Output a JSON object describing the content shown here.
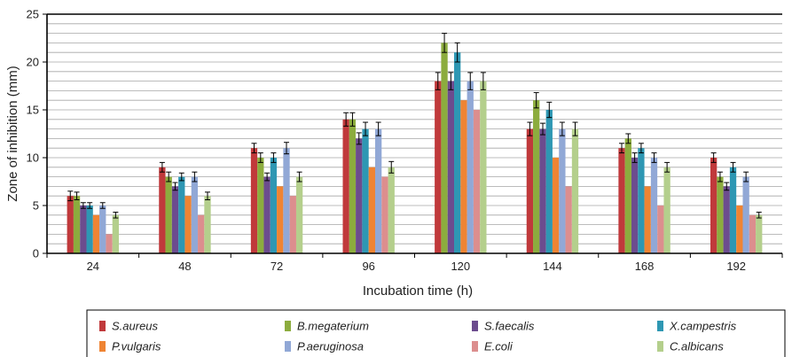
{
  "chart_data": {
    "type": "bar",
    "title": "",
    "xlabel": "Incubation time (h)",
    "ylabel": "Zone of inhibition (mm)",
    "ylim": [
      0,
      25
    ],
    "yticks": [
      "0",
      "5",
      "10",
      "15",
      "20",
      "25"
    ],
    "grid": true,
    "error_bars": true,
    "legend_position": "bottom",
    "categories": [
      "24",
      "48",
      "72",
      "96",
      "120",
      "144",
      "168",
      "192"
    ],
    "series": [
      {
        "name": "S.aureus",
        "color": "#c0393b",
        "values": [
          6,
          9,
          11,
          14,
          18,
          13,
          11,
          10
        ],
        "errors": [
          0.5,
          0.5,
          0.5,
          0.7,
          0.9,
          0.7,
          0.5,
          0.5
        ]
      },
      {
        "name": "B.megaterium",
        "color": "#8cac3e",
        "values": [
          6,
          8,
          10,
          14,
          22,
          16,
          12,
          8
        ],
        "errors": [
          0.4,
          0.5,
          0.5,
          0.7,
          1.0,
          0.8,
          0.5,
          0.5
        ]
      },
      {
        "name": "S.faecalis",
        "color": "#6c4c8e",
        "values": [
          5,
          7,
          8,
          12,
          18,
          13,
          10,
          7
        ],
        "errors": [
          0.3,
          0.4,
          0.4,
          0.6,
          0.9,
          0.6,
          0.5,
          0.4
        ]
      },
      {
        "name": "X.campestris",
        "color": "#2e97b3",
        "values": [
          5,
          8,
          10,
          13,
          21,
          15,
          11,
          9
        ],
        "errors": [
          0.3,
          0.4,
          0.5,
          0.7,
          1.0,
          0.8,
          0.5,
          0.5
        ]
      },
      {
        "name": "P.vulgaris",
        "color": "#ef8433",
        "values": [
          4,
          6,
          7,
          9,
          16,
          10,
          7,
          5
        ],
        "errors": [
          0,
          0,
          0,
          0,
          0,
          0,
          0,
          0
        ]
      },
      {
        "name": "P.aeruginosa",
        "color": "#91a8d6",
        "values": [
          5,
          8,
          11,
          13,
          18,
          13,
          10,
          8
        ],
        "errors": [
          0.3,
          0.5,
          0.6,
          0.7,
          0.9,
          0.7,
          0.5,
          0.5
        ]
      },
      {
        "name": "E.coli",
        "color": "#dc8e8e",
        "values": [
          2,
          4,
          6,
          8,
          15,
          7,
          5,
          4
        ],
        "errors": [
          0,
          0,
          0,
          0,
          0,
          0,
          0,
          0
        ]
      },
      {
        "name": "C.albicans",
        "color": "#b4cf8c",
        "values": [
          4,
          6,
          8,
          9,
          18,
          13,
          9,
          4
        ],
        "errors": [
          0.3,
          0.4,
          0.5,
          0.6,
          0.9,
          0.7,
          0.5,
          0.3
        ]
      }
    ]
  }
}
